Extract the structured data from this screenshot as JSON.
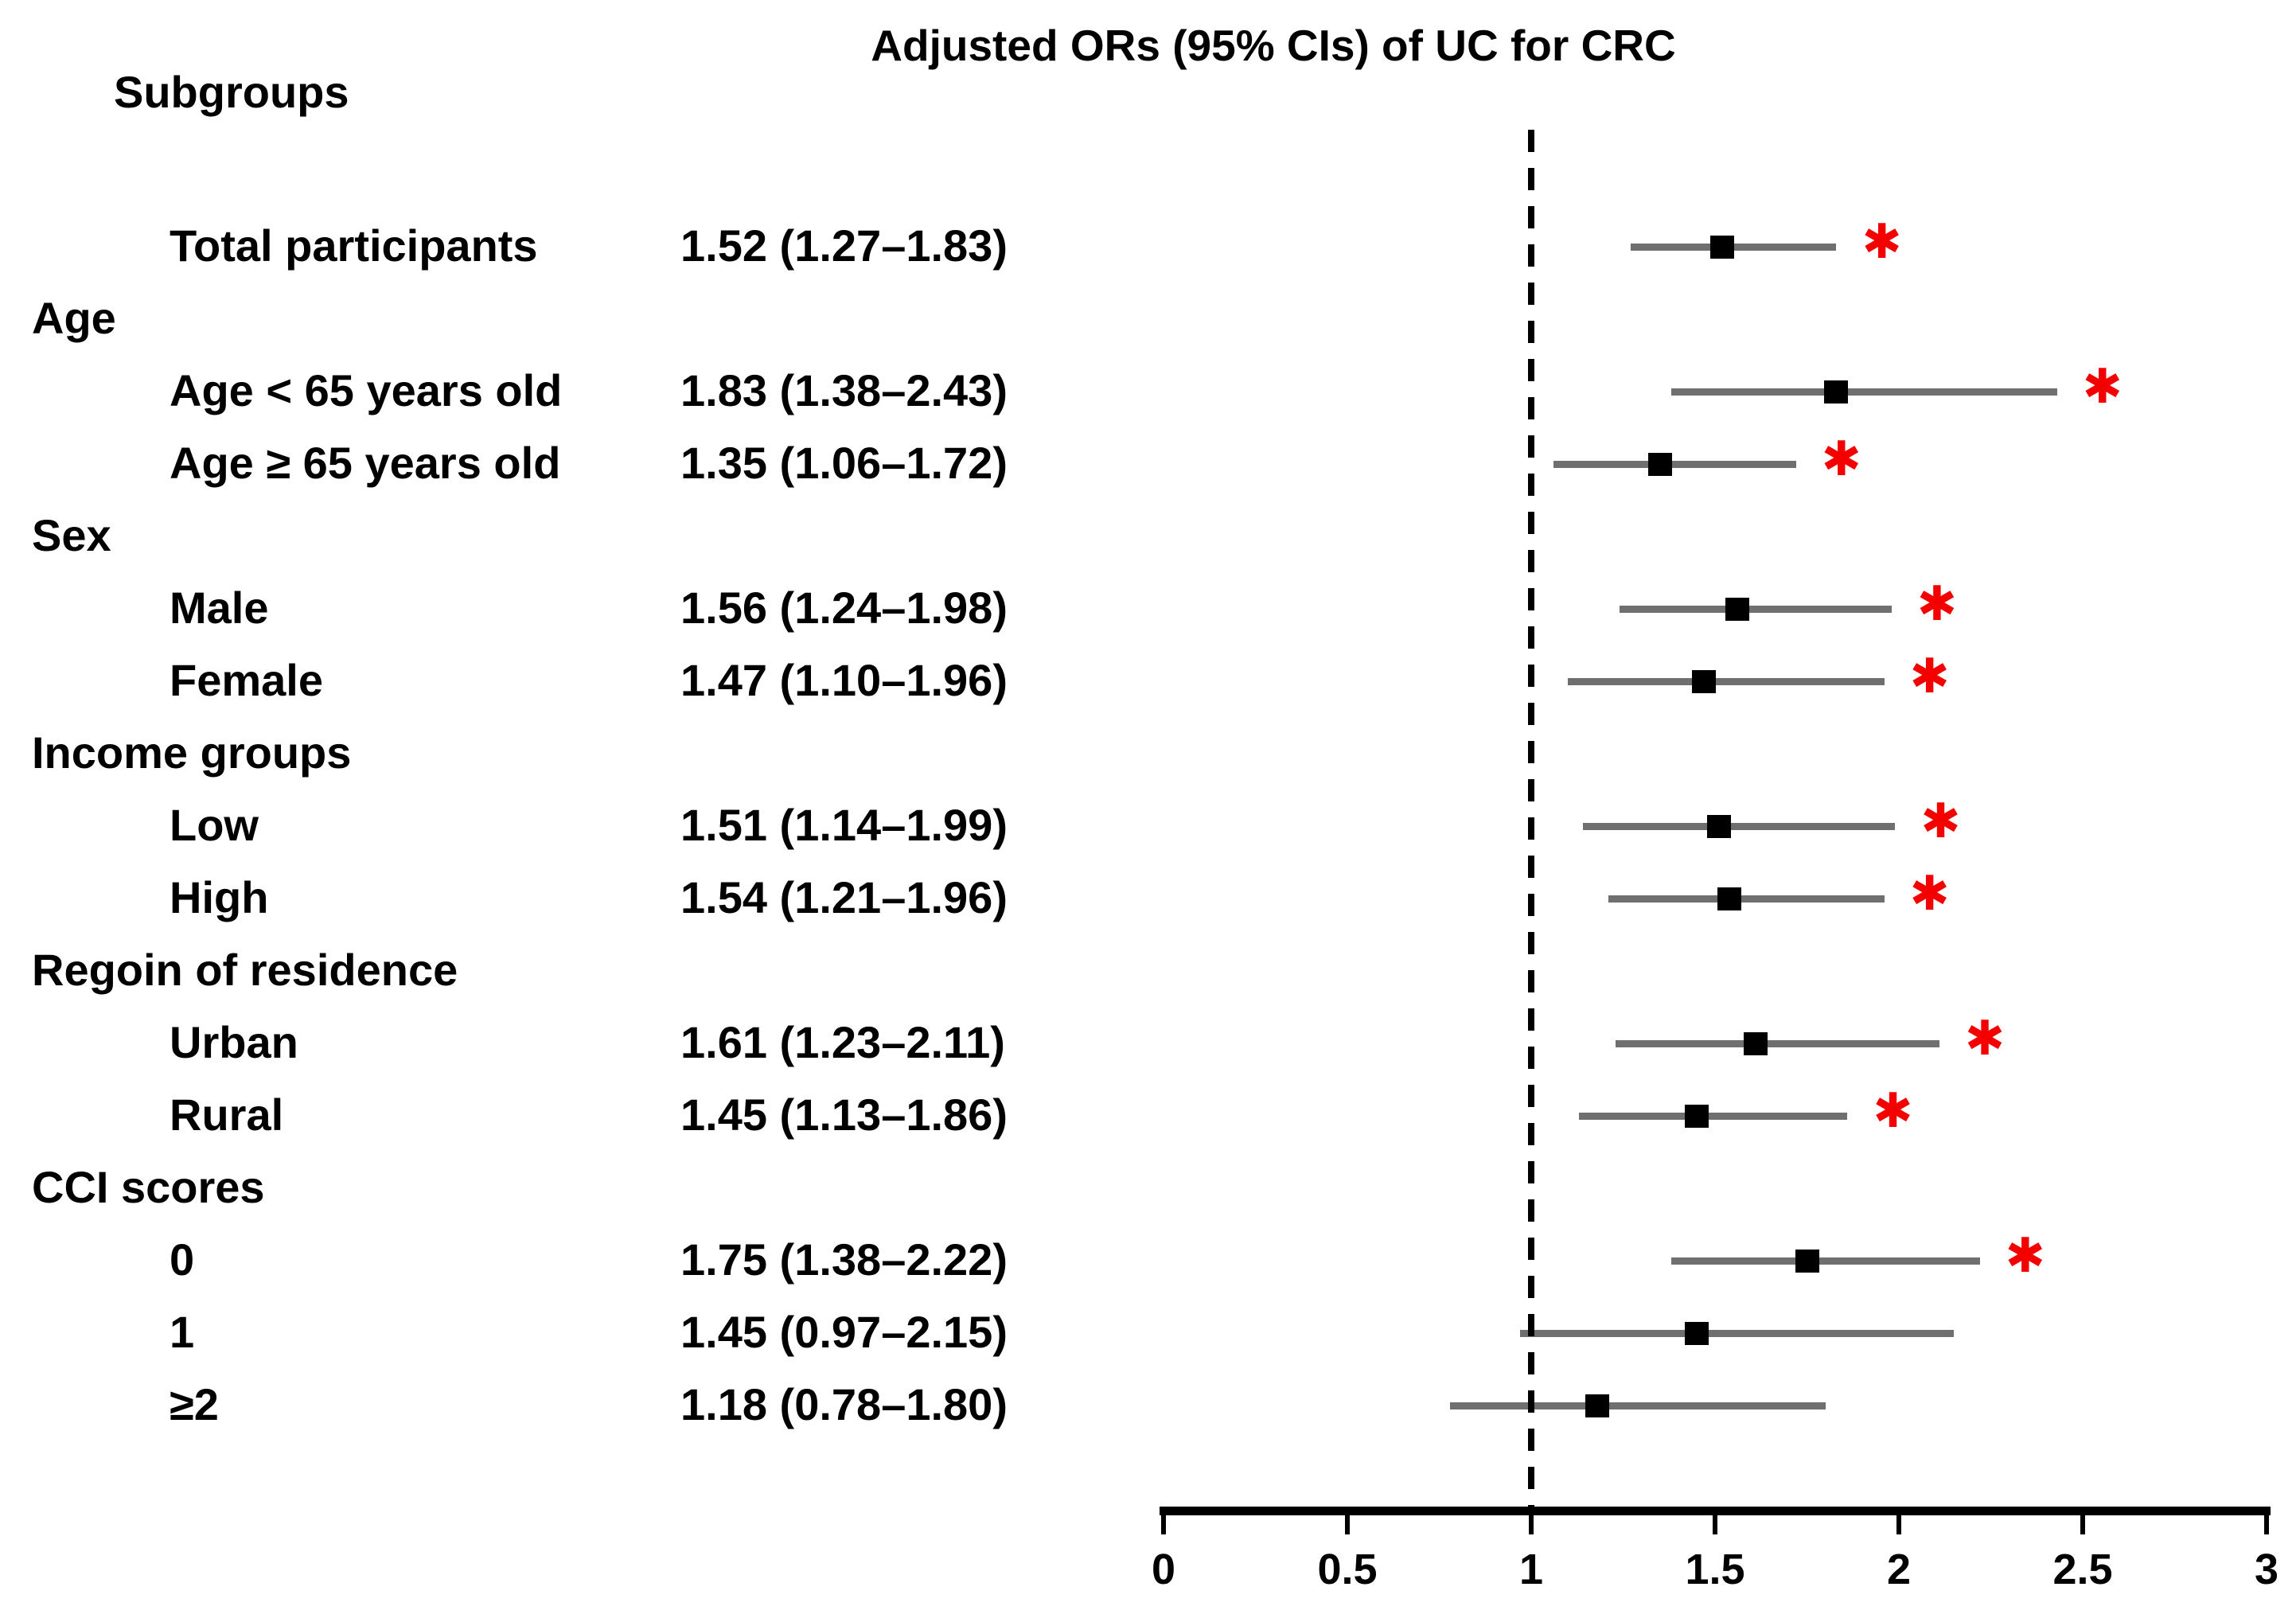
{
  "figure": {
    "subgroups_header": "Subgroups",
    "significance_marker": "✱"
  },
  "chart_data": {
    "type": "scatter",
    "variant": "forest-plot (odds ratios with 95% CI whiskers)",
    "title": "Adjusted ORs (95% CIs) of UC for CRC",
    "xlabel": "",
    "ylabel": "",
    "xlim": [
      0,
      3
    ],
    "x_tick_values": [
      0,
      0.5,
      1,
      1.5,
      2,
      2.5,
      3
    ],
    "x_tick_labels": [
      "0",
      "0.5",
      "1",
      "1.5",
      "2",
      "2.5",
      "3"
    ],
    "reference_line_x": 1,
    "grid": false,
    "legend_position": "none",
    "rows": [
      {
        "kind": "data",
        "label": "Total participants",
        "estimate_label": "1.52 (1.27–1.83)",
        "or": 1.52,
        "ci_low": 1.27,
        "ci_high": 1.83,
        "significant": true
      },
      {
        "kind": "header",
        "label": "Age"
      },
      {
        "kind": "data",
        "label": "Age < 65 years old",
        "estimate_label": "1.83 (1.38–2.43)",
        "or": 1.83,
        "ci_low": 1.38,
        "ci_high": 2.43,
        "significant": true
      },
      {
        "kind": "data",
        "label": "Age ≥ 65 years old",
        "estimate_label": "1.35 (1.06–1.72)",
        "or": 1.35,
        "ci_low": 1.06,
        "ci_high": 1.72,
        "significant": true
      },
      {
        "kind": "header",
        "label": "Sex"
      },
      {
        "kind": "data",
        "label": "Male",
        "estimate_label": "1.56 (1.24–1.98)",
        "or": 1.56,
        "ci_low": 1.24,
        "ci_high": 1.98,
        "significant": true
      },
      {
        "kind": "data",
        "label": "Female",
        "estimate_label": "1.47 (1.10–1.96)",
        "or": 1.47,
        "ci_low": 1.1,
        "ci_high": 1.96,
        "significant": true
      },
      {
        "kind": "header",
        "label": "Income groups"
      },
      {
        "kind": "data",
        "label": "Low",
        "estimate_label": "1.51 (1.14–1.99)",
        "or": 1.51,
        "ci_low": 1.14,
        "ci_high": 1.99,
        "significant": true
      },
      {
        "kind": "data",
        "label": "High",
        "estimate_label": "1.54 (1.21–1.96)",
        "or": 1.54,
        "ci_low": 1.21,
        "ci_high": 1.96,
        "significant": true
      },
      {
        "kind": "header",
        "label": "Regoin of residence"
      },
      {
        "kind": "data",
        "label": "Urban",
        "estimate_label": "1.61 (1.23–2.11)",
        "or": 1.61,
        "ci_low": 1.23,
        "ci_high": 2.11,
        "significant": true
      },
      {
        "kind": "data",
        "label": "Rural",
        "estimate_label": "1.45 (1.13–1.86)",
        "or": 1.45,
        "ci_low": 1.13,
        "ci_high": 1.86,
        "significant": true
      },
      {
        "kind": "header",
        "label": "CCI scores"
      },
      {
        "kind": "data",
        "label": "0",
        "estimate_label": "1.75 (1.38–2.22)",
        "or": 1.75,
        "ci_low": 1.38,
        "ci_high": 2.22,
        "significant": true
      },
      {
        "kind": "data",
        "label": "1",
        "estimate_label": "1.45 (0.97–2.15)",
        "or": 1.45,
        "ci_low": 0.97,
        "ci_high": 2.15,
        "significant": false
      },
      {
        "kind": "data",
        "label": "≥2",
        "estimate_label": "1.18 (0.78–1.80)",
        "or": 1.18,
        "ci_low": 0.78,
        "ci_high": 1.8,
        "significant": false
      }
    ],
    "colors": {
      "text": "#000000",
      "ci_line": "#6f6f6f",
      "marker": "#000000",
      "significance": "#f40000",
      "axis": "#000000",
      "reference_line": "#000000",
      "background": "#ffffff"
    }
  }
}
